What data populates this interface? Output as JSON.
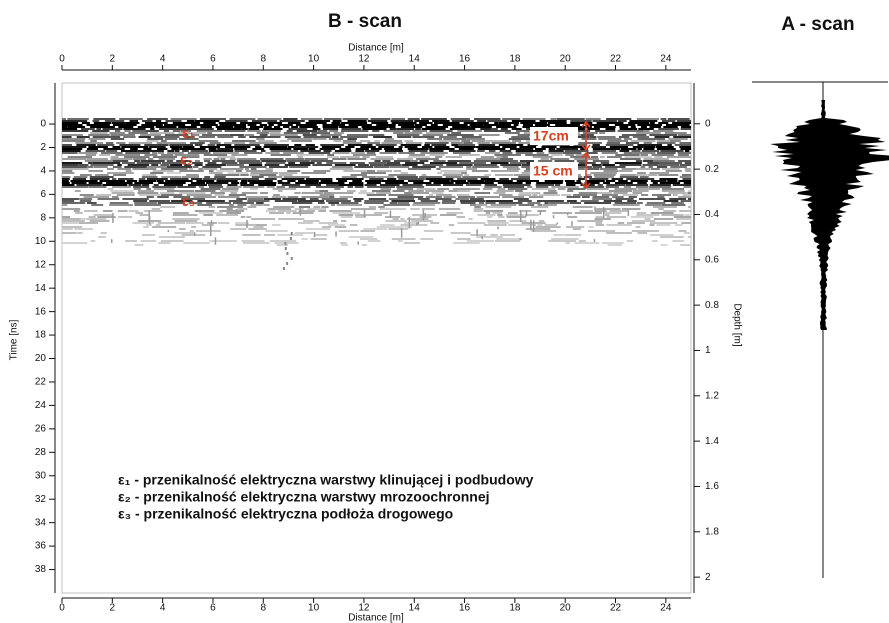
{
  "chart_data": {
    "type": "radargram",
    "title": "B - scan",
    "x_label": "Distance [m]",
    "y_label": "Time [ns]",
    "y2_label": "Depth [m]",
    "xlim": [
      0,
      25
    ],
    "xticks": [
      0,
      2,
      4,
      6,
      8,
      10,
      12,
      14,
      16,
      18,
      20,
      22,
      24
    ],
    "ylim": [
      -3.5,
      40
    ],
    "yticks": [
      0,
      2,
      4,
      6,
      8,
      10,
      12,
      14,
      16,
      18,
      20,
      22,
      24,
      26,
      28,
      30,
      32,
      34,
      36,
      38
    ],
    "y2lim": [
      -0.18,
      2.07
    ],
    "y2ticks": [
      0,
      0.2,
      0.4,
      0.6,
      0.8,
      1,
      1.2,
      1.4,
      1.6,
      1.8,
      2
    ],
    "annotations": [
      "ε₁",
      "ε₂",
      "ε₃",
      "17cm",
      "15 cm"
    ],
    "legend": [
      "ε₁ - przenikalność elektryczna warstwy klinującej i podbudowy",
      "ε₂ - przenikalność elektryczna warstwy mrozoochronnej",
      "ε₃ - przenikalność elektryczna podłoża drogowego"
    ]
  },
  "a_scan": {
    "title": "A - scan"
  }
}
